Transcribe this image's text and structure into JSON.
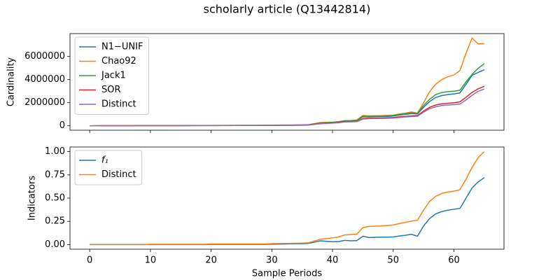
{
  "title": "scholarly article (Q13442814)",
  "chart_data": [
    {
      "type": "line",
      "ylabel": "Cardinality",
      "legend": "upper left",
      "x": [
        0,
        1,
        2,
        3,
        4,
        5,
        6,
        7,
        8,
        9,
        10,
        11,
        12,
        13,
        14,
        15,
        16,
        17,
        18,
        19,
        20,
        21,
        22,
        23,
        24,
        25,
        26,
        27,
        28,
        29,
        30,
        31,
        32,
        33,
        34,
        35,
        36,
        37,
        38,
        39,
        40,
        41,
        42,
        43,
        44,
        45,
        46,
        47,
        48,
        49,
        50,
        51,
        52,
        53,
        54,
        55,
        56,
        57,
        58,
        59,
        60,
        61,
        62,
        63,
        64,
        65
      ],
      "xlim": [
        -3.25,
        68.25
      ],
      "xticks": [
        0,
        10,
        20,
        30,
        40,
        50,
        60
      ],
      "ylim": [
        -380000,
        7980000
      ],
      "yticks": [
        0,
        2000000,
        4000000,
        6000000
      ],
      "series": [
        {
          "name": "N1−UNIF",
          "color": "#1f77b4",
          "values": [
            1300,
            2600,
            3900,
            5200,
            6500,
            7800,
            9100,
            10400,
            11700,
            13000,
            14300,
            15600,
            16900,
            18200,
            19500,
            20800,
            22100,
            23400,
            24700,
            26000,
            27300,
            28600,
            29900,
            31200,
            32500,
            33800,
            35100,
            36400,
            37700,
            39000,
            40000,
            44000,
            49000,
            54000,
            60000,
            66000,
            80000,
            160000,
            240000,
            260000,
            290000,
            330000,
            410000,
            420000,
            450000,
            780000,
            790000,
            800000,
            810000,
            820000,
            850000,
            930000,
            990000,
            1060000,
            1030000,
            1600000,
            2100000,
            2450000,
            2620000,
            2700000,
            2760000,
            2850000,
            3600000,
            4380000,
            4620000,
            4850000
          ]
        },
        {
          "name": "Chao92",
          "color": "#ff7f0e",
          "values": [
            1600,
            3200,
            4800,
            6400,
            8000,
            9600,
            11200,
            12800,
            14400,
            16000,
            17600,
            19200,
            20800,
            22400,
            24000,
            25600,
            27200,
            28800,
            30400,
            32000,
            33600,
            35200,
            36800,
            38400,
            40000,
            41600,
            43200,
            44800,
            46400,
            48000,
            48000,
            54000,
            60000,
            66000,
            72000,
            80000,
            95000,
            190000,
            280000,
            300000,
            320000,
            360000,
            450000,
            460000,
            500000,
            900000,
            860000,
            870000,
            880000,
            900000,
            920000,
            1020000,
            1100000,
            1200000,
            1100000,
            2000000,
            2950000,
            3600000,
            4000000,
            4250000,
            4400000,
            4780000,
            6300000,
            7600000,
            7080000,
            7100000
          ]
        },
        {
          "name": "Jack1",
          "color": "#2ca02c",
          "values": [
            1400,
            2800,
            4200,
            5600,
            7000,
            8400,
            9800,
            11200,
            12600,
            14000,
            15400,
            16800,
            18200,
            19600,
            21000,
            22400,
            23800,
            25200,
            26600,
            28000,
            29400,
            30800,
            32200,
            33600,
            35000,
            36400,
            37800,
            39200,
            40600,
            42000,
            42000,
            47000,
            52000,
            58000,
            64000,
            70000,
            85000,
            170000,
            255000,
            275000,
            305000,
            345000,
            430000,
            440000,
            470000,
            820000,
            830000,
            840000,
            850000,
            860000,
            890000,
            980000,
            1040000,
            1120000,
            1080000,
            1750000,
            2300000,
            2700000,
            2880000,
            2950000,
            3000000,
            3080000,
            3800000,
            4450000,
            4980000,
            5380000
          ]
        },
        {
          "name": "SOR",
          "color": "#d62728",
          "values": [
            1100,
            2200,
            3300,
            4400,
            5500,
            6600,
            7700,
            8800,
            9900,
            11000,
            12100,
            13200,
            14300,
            15400,
            16500,
            17600,
            18700,
            19800,
            20900,
            22000,
            23100,
            24200,
            25300,
            26400,
            27500,
            28600,
            29700,
            30800,
            31900,
            33000,
            35000,
            38000,
            42000,
            46000,
            50000,
            55000,
            66000,
            135000,
            200000,
            220000,
            250000,
            285000,
            360000,
            370000,
            390000,
            630000,
            670000,
            680000,
            690000,
            700000,
            720000,
            780000,
            820000,
            860000,
            890000,
            1280000,
            1600000,
            1800000,
            1900000,
            1950000,
            1990000,
            2080000,
            2470000,
            2900000,
            3200000,
            3420000
          ]
        },
        {
          "name": "Distinct",
          "color": "#9467bd",
          "values": [
            1000,
            2000,
            3000,
            4000,
            5000,
            6000,
            7000,
            8000,
            9000,
            10000,
            11000,
            12000,
            13000,
            14000,
            15000,
            16000,
            17000,
            18000,
            19000,
            20000,
            21000,
            22000,
            23000,
            24000,
            25000,
            26000,
            27000,
            28000,
            29000,
            30000,
            32000,
            35000,
            38000,
            42000,
            46000,
            50000,
            60000,
            120000,
            180000,
            200000,
            230000,
            260000,
            330000,
            340000,
            360000,
            580000,
            620000,
            630000,
            640000,
            650000,
            670000,
            720000,
            760000,
            800000,
            830000,
            1180000,
            1480000,
            1650000,
            1750000,
            1800000,
            1830000,
            1880000,
            2240000,
            2650000,
            2980000,
            3180000
          ]
        }
      ]
    },
    {
      "type": "line",
      "ylabel": "Indicators",
      "xlabel": "Sample Periods",
      "legend": "upper left",
      "x": [
        0,
        1,
        2,
        3,
        4,
        5,
        6,
        7,
        8,
        9,
        10,
        11,
        12,
        13,
        14,
        15,
        16,
        17,
        18,
        19,
        20,
        21,
        22,
        23,
        24,
        25,
        26,
        27,
        28,
        29,
        30,
        31,
        32,
        33,
        34,
        35,
        36,
        37,
        38,
        39,
        40,
        41,
        42,
        43,
        44,
        45,
        46,
        47,
        48,
        49,
        50,
        51,
        52,
        53,
        54,
        55,
        56,
        57,
        58,
        59,
        60,
        61,
        62,
        63,
        64,
        65
      ],
      "xlim": [
        -3.25,
        68.25
      ],
      "xticks": [
        0,
        10,
        20,
        30,
        40,
        50,
        60
      ],
      "ylim": [
        -0.05,
        1.05
      ],
      "yticks": [
        {
          "value": 0,
          "label": "0.00"
        },
        0.25,
        {
          "value": 0.5,
          "label": "0.50"
        },
        0.75,
        {
          "value": 1,
          "label": "1.00"
        }
      ],
      "series": [
        {
          "name": "f₁",
          "color": "#1f77b4",
          "values": [
            0,
            0,
            0,
            0,
            0,
            0,
            0,
            0,
            0,
            0,
            0,
            0,
            0,
            0,
            0,
            0,
            0,
            0,
            0,
            0,
            0.002,
            0.002,
            0.002,
            0.002,
            0.002,
            0.002,
            0.002,
            0.002,
            0.002,
            0.002,
            0.004,
            0.005,
            0.006,
            0.007,
            0.008,
            0.009,
            0.012,
            0.025,
            0.04,
            0.035,
            0.03,
            0.032,
            0.045,
            0.04,
            0.042,
            0.09,
            0.075,
            0.078,
            0.08,
            0.08,
            0.082,
            0.092,
            0.1,
            0.11,
            0.09,
            0.2,
            0.28,
            0.33,
            0.355,
            0.37,
            0.38,
            0.39,
            0.5,
            0.61,
            0.675,
            0.72
          ]
        },
        {
          "name": "Distinct",
          "color": "#ff7f0e",
          "values": [
            0,
            0,
            0,
            0,
            0,
            0,
            0,
            0,
            0,
            0,
            0.003,
            0.003,
            0.003,
            0.003,
            0.003,
            0.003,
            0.003,
            0.003,
            0.003,
            0.003,
            0.006,
            0.006,
            0.006,
            0.006,
            0.006,
            0.006,
            0.006,
            0.006,
            0.006,
            0.006,
            0.01,
            0.011,
            0.012,
            0.013,
            0.014,
            0.016,
            0.019,
            0.038,
            0.057,
            0.063,
            0.072,
            0.082,
            0.104,
            0.107,
            0.113,
            0.182,
            0.195,
            0.198,
            0.201,
            0.204,
            0.211,
            0.226,
            0.239,
            0.252,
            0.261,
            0.371,
            0.465,
            0.519,
            0.55,
            0.566,
            0.575,
            0.591,
            0.704,
            0.833,
            0.937,
            1.0
          ]
        }
      ]
    }
  ]
}
